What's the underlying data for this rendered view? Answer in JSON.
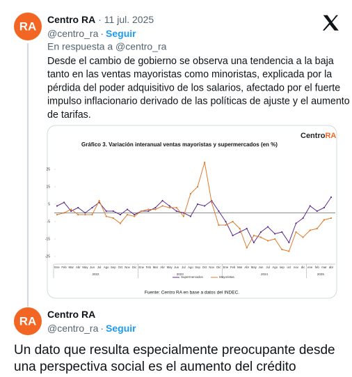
{
  "tweets": [
    {
      "avatar_text": "RA",
      "name": "Centro RA",
      "date": "· 11 jul. 2025",
      "handle": "@centro_ra",
      "separator": "·",
      "follow": "Seguir",
      "reply_to": "En respuesta a @centro_ra",
      "text_lines": [
        "Desde el cambio de gobierno se observa una tendencia a la baja",
        "tanto en las ventas mayoristas como minoristas, explicada por la",
        "pérdida del poder adquisitivo de los salarios, afectado por el fuerte",
        "impulso inflacionario derivado de las políticas de ajuste y el aumento",
        "de tarifas."
      ]
    },
    {
      "avatar_text": "RA",
      "name": "Centro RA",
      "handle": "@centro_ra",
      "separator": "·",
      "follow": "Seguir",
      "text_lines": [
        "Un dato que resulta especialmente preocupante desde",
        "una perspectiva social es el aumento del crédito"
      ]
    }
  ],
  "chart_data": {
    "type": "line",
    "title": "Gráfico 3. Variación interanual ventas mayoristas y supermercados (en %)",
    "logo": [
      "Centro",
      "RA"
    ],
    "source": "Fuente: Centro RA en base a datos del INDEC.",
    "categories": [
      "Ene",
      "Feb",
      "Mar",
      "Abr",
      "May",
      "Jun",
      "Jul",
      "Ago",
      "Sep",
      "Oct",
      "Nov",
      "Dic",
      "Ene",
      "Feb",
      "Mar",
      "Abr",
      "May",
      "Jun",
      "Jul",
      "Ago",
      "Sep",
      "Oct",
      "Nov",
      "Dic",
      "Ene",
      "Feb",
      "Mar",
      "Abr",
      "May",
      "Jun",
      "Jul",
      "Ago",
      "sep",
      "oct",
      "nov",
      "dic",
      "ene",
      "feb",
      "mar",
      "abr"
    ],
    "years": [
      "2022",
      "2023",
      "2024",
      "2025"
    ],
    "series": [
      {
        "name": "Supermercados",
        "color": "#5b2c8f",
        "values": [
          4,
          6,
          1,
          3,
          0,
          3,
          6,
          1,
          1,
          -1,
          2,
          -1,
          1,
          1,
          3,
          7,
          4,
          1,
          0,
          -2,
          5,
          4,
          7,
          1,
          -5,
          -13,
          -11,
          -9,
          -17,
          -11,
          -8,
          -12,
          -11,
          -17,
          -6,
          -3,
          4,
          1,
          3,
          9
        ]
      },
      {
        "name": "Mayoristas",
        "color": "#e07b2a",
        "values": [
          -1,
          0,
          2,
          -1,
          -1,
          -1,
          7,
          -2,
          -3,
          -6,
          -1,
          -2,
          1,
          2,
          2,
          4,
          3,
          3,
          -2,
          11,
          15,
          29,
          6,
          -7,
          -7,
          -5,
          -9,
          -20,
          -13,
          -14,
          -16,
          -15,
          -21,
          -22,
          -11,
          -14,
          -10,
          -9,
          -4,
          -3
        ]
      }
    ],
    "ylim": [
      -28,
      32
    ],
    "yticks": [
      25,
      15,
      5,
      -5,
      -15,
      -25
    ]
  }
}
